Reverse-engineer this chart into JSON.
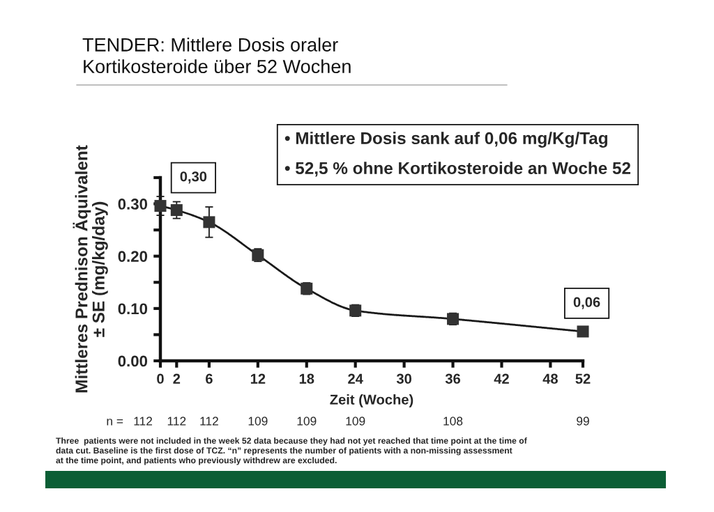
{
  "chart_data": {
    "type": "line",
    "title": "TENDER: Mittlere Dosis oraler\nKortikosteroide über 52 Wochen",
    "xlabel": "Zeit (Woche)",
    "ylabel": "Mittleres Prednison Äquivalent\n± SE (mg/kg/day)",
    "x": [
      0,
      2,
      6,
      12,
      18,
      24,
      36,
      52
    ],
    "series": [
      {
        "color": "#333333",
        "values": [
          0.296,
          0.288,
          0.265,
          0.202,
          0.138,
          0.096,
          0.08,
          0.056
        ],
        "errors": [
          0.018,
          0.016,
          0.029,
          0.012,
          0.011,
          0.011,
          0.011,
          null
        ]
      }
    ],
    "xlim": [
      0,
      52
    ],
    "xticks": [
      0,
      2,
      6,
      12,
      18,
      24,
      30,
      36,
      42,
      48,
      52
    ],
    "ylim": [
      0,
      0.35
    ],
    "yticks": [
      {
        "value": 0,
        "label": "0.00"
      },
      {
        "value": 0.05,
        "label": null
      },
      {
        "value": 0.1,
        "label": "0.10"
      },
      {
        "value": 0.15,
        "label": null
      },
      {
        "value": 0.2,
        "label": "0.20"
      },
      {
        "value": 0.25,
        "label": null
      },
      {
        "value": 0.3,
        "label": "0.30"
      },
      {
        "value": 0.35,
        "label": null
      }
    ],
    "marker": "square",
    "line_style": "solid",
    "grid": false,
    "annotations": [
      {
        "text": "0,30",
        "x": 0,
        "y": 0.3
      },
      {
        "text": "0,06",
        "x": 52,
        "y": 0.06
      },
      "• Mittlere Dosis sank auf 0,06 mg/Kg/Tag",
      "• 52,5 % ohne Kortikosteroide an Woche 52",
      "n =",
      "112",
      "112",
      "112",
      "109",
      "109",
      "109",
      "108",
      "99",
      "Three  patients were not included in the week 52 data because they had not yet reached that time point at the time of\ndata cut. Baseline is the first dose of TCZ. “n” represents the number of patients with a non-missing assessment\nat the time point, and patients who previously withdrew are excluded."
    ]
  }
}
